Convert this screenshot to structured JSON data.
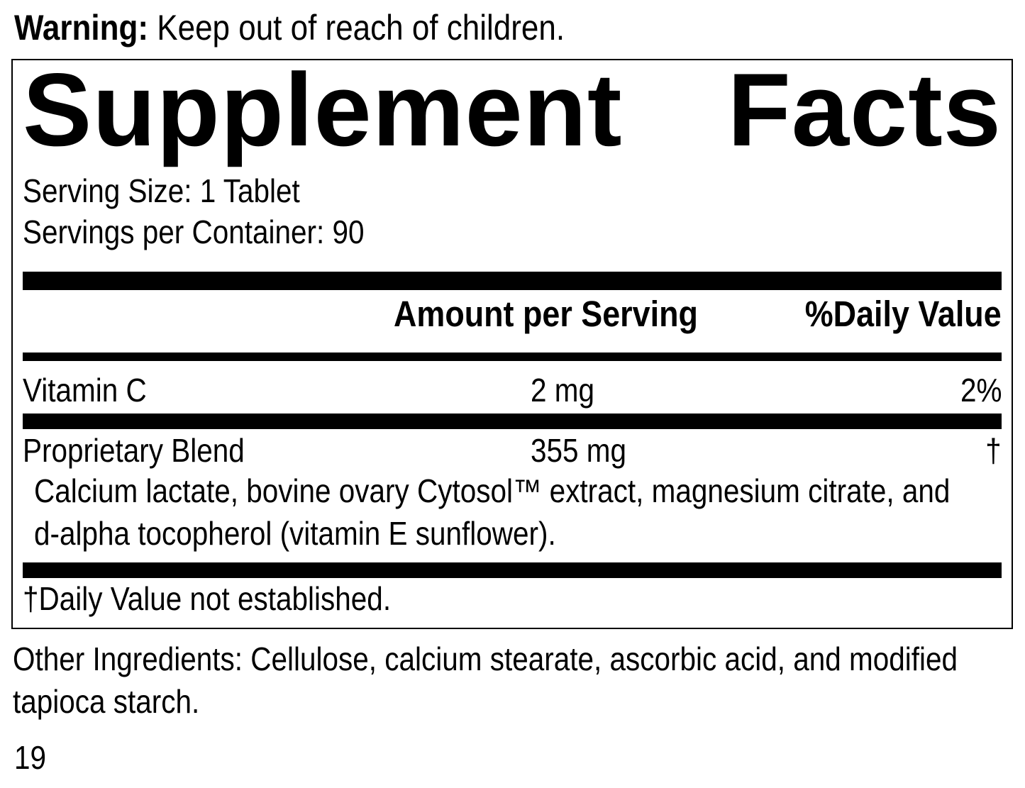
{
  "warning": {
    "label": "Warning:",
    "text": "Keep out of reach of children."
  },
  "panel": {
    "title": {
      "word1": "Supplement",
      "word2": "Facts"
    },
    "serving_size": "Serving Size: 1 Tablet",
    "servings_per_container": "Servings per Container: 90",
    "column_headers": {
      "amount": "Amount per Serving",
      "daily_value": "%Daily Value"
    },
    "rows": [
      {
        "name": "Vitamin C",
        "amount": "2 mg",
        "daily_value": "2%"
      },
      {
        "name": "Proprietary Blend",
        "amount": "355 mg",
        "daily_value": "†"
      }
    ],
    "blend_description_lines": [
      "Calcium lactate, bovine ovary Cytosol™ extract, magnesium citrate, and",
      "d-alpha tocopherol (vitamin E sunflower)."
    ],
    "footnote": "†Daily Value not established."
  },
  "other_ingredients_lines": [
    "Other Ingredients: Cellulose, calcium stearate, ascorbic acid, and modified",
    "tapioca starch."
  ],
  "page_number": "19",
  "colors": {
    "text": "#000000",
    "background": "#ffffff",
    "divider": "#000000"
  }
}
